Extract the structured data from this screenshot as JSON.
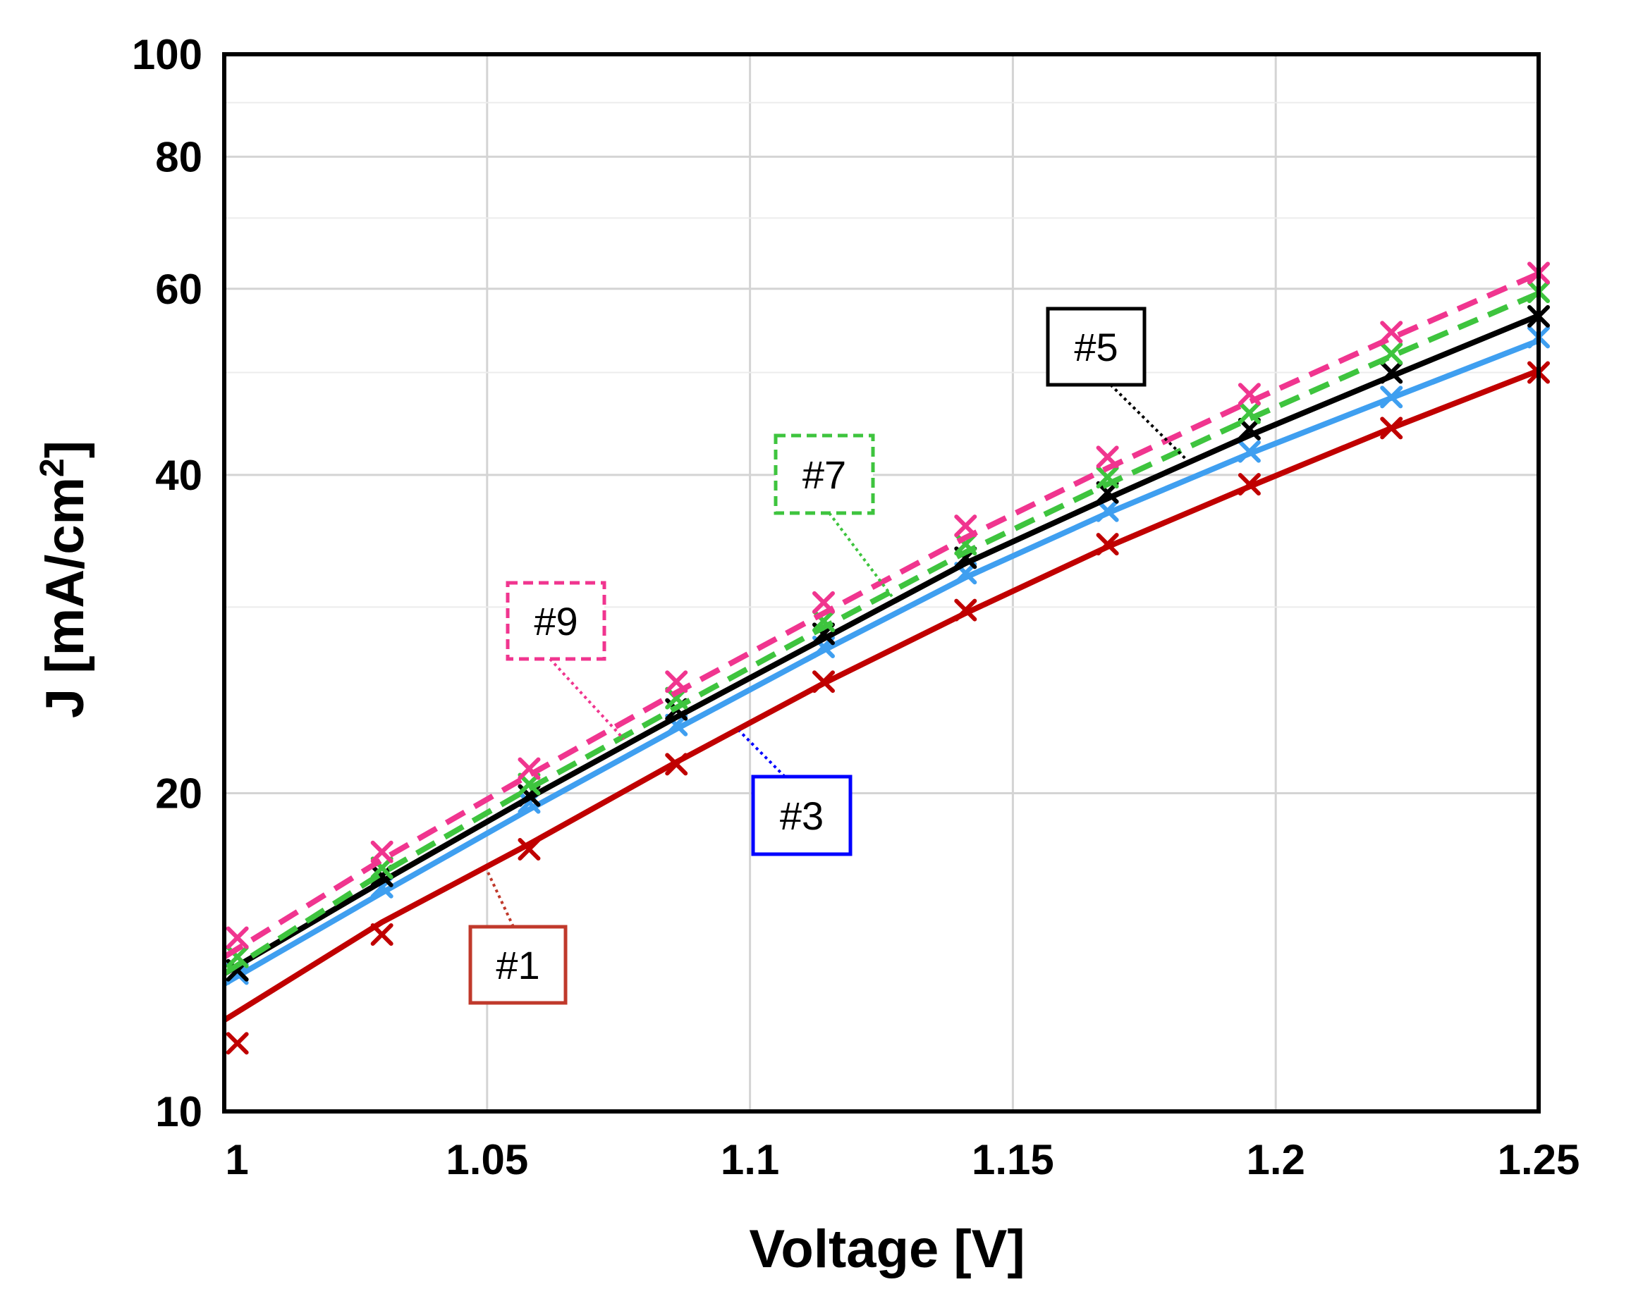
{
  "chart_data": {
    "type": "line",
    "title": "",
    "xlabel": "Voltage [V]",
    "ylabel_main": "J [mA/cm",
    "ylabel_sup": "2",
    "ylabel_close": "]",
    "xlim": [
      1.0,
      1.25
    ],
    "ylim": [
      10,
      100
    ],
    "yscale": "log",
    "grid": true,
    "x_ticks": [
      1.0,
      1.05,
      1.1,
      1.15,
      1.2,
      1.25
    ],
    "x_tick_labels": [
      "1",
      "1.05",
      "1.1",
      "1.15",
      "1.2",
      "1.25"
    ],
    "y_ticks": [
      10,
      20,
      40,
      60,
      80,
      100
    ],
    "y_tick_labels": [
      "10",
      "20",
      "40",
      "60",
      "80",
      "100"
    ],
    "y_grid_values": [
      30,
      50,
      70,
      90
    ],
    "series": [
      {
        "name": "#1",
        "color": "#c00000",
        "dash": "solid",
        "box_style": "solid",
        "box_color": "#c0392b",
        "points": [
          [
            1.0025,
            11.6
          ],
          [
            1.03,
            14.7
          ],
          [
            1.058,
            17.7
          ],
          [
            1.086,
            21.3
          ],
          [
            1.114,
            25.5
          ],
          [
            1.141,
            29.8
          ],
          [
            1.168,
            34.4
          ],
          [
            1.195,
            39.2
          ],
          [
            1.222,
            44.3
          ],
          [
            1.25,
            50.0
          ]
        ],
        "curve": [
          [
            1.0,
            12.2
          ],
          [
            1.03,
            15.1
          ],
          [
            1.058,
            17.9
          ],
          [
            1.086,
            21.4
          ],
          [
            1.114,
            25.4
          ],
          [
            1.141,
            29.6
          ],
          [
            1.168,
            34.2
          ],
          [
            1.195,
            39.0
          ],
          [
            1.222,
            44.3
          ],
          [
            1.25,
            50.2
          ]
        ]
      },
      {
        "name": "#3",
        "color": "#3f9ff0",
        "dash": "solid",
        "box_style": "solid",
        "box_color": "#0000ff",
        "points": [
          [
            1.0025,
            13.5
          ],
          [
            1.03,
            16.3
          ],
          [
            1.058,
            19.6
          ],
          [
            1.086,
            23.2
          ],
          [
            1.114,
            27.5
          ],
          [
            1.141,
            32.3
          ],
          [
            1.168,
            37.0
          ],
          [
            1.195,
            42.1
          ],
          [
            1.222,
            47.4
          ],
          [
            1.25,
            54.0
          ]
        ],
        "curve": [
          [
            1.0,
            13.2
          ],
          [
            1.03,
            16.1
          ],
          [
            1.058,
            19.3
          ],
          [
            1.086,
            23.0
          ],
          [
            1.114,
            27.3
          ],
          [
            1.141,
            32.0
          ],
          [
            1.168,
            36.8
          ],
          [
            1.195,
            41.9
          ],
          [
            1.222,
            47.3
          ],
          [
            1.25,
            53.6
          ]
        ]
      },
      {
        "name": "#5",
        "color": "#000000",
        "dash": "solid",
        "box_style": "solid",
        "box_color": "#000000",
        "points": [
          [
            1.0025,
            13.6
          ],
          [
            1.03,
            16.7
          ],
          [
            1.058,
            19.9
          ],
          [
            1.086,
            24.0
          ],
          [
            1.114,
            28.3
          ],
          [
            1.141,
            33.4
          ],
          [
            1.168,
            38.5
          ],
          [
            1.195,
            44.2
          ],
          [
            1.222,
            50.0
          ],
          [
            1.25,
            56.5
          ]
        ],
        "curve": [
          [
            1.0,
            13.5
          ],
          [
            1.03,
            16.5
          ],
          [
            1.058,
            19.8
          ],
          [
            1.086,
            23.6
          ],
          [
            1.114,
            28.0
          ],
          [
            1.141,
            33.0
          ],
          [
            1.168,
            38.0
          ],
          [
            1.195,
            43.6
          ],
          [
            1.222,
            49.6
          ],
          [
            1.25,
            56.6
          ]
        ]
      },
      {
        "name": "#7",
        "color": "#3ec43e",
        "dash": "dashed",
        "box_style": "dashed",
        "box_color": "#3ec43e",
        "points": [
          [
            1.0025,
            14.0
          ],
          [
            1.03,
            17.0
          ],
          [
            1.058,
            20.4
          ],
          [
            1.086,
            24.6
          ],
          [
            1.114,
            29.1
          ],
          [
            1.141,
            34.4
          ],
          [
            1.168,
            39.8
          ],
          [
            1.195,
            45.8
          ],
          [
            1.222,
            52.1
          ],
          [
            1.25,
            59.6
          ]
        ],
        "curve": [
          [
            1.0,
            13.5
          ],
          [
            1.03,
            16.8
          ],
          [
            1.058,
            20.2
          ],
          [
            1.086,
            24.1
          ],
          [
            1.114,
            28.7
          ],
          [
            1.141,
            33.8
          ],
          [
            1.168,
            39.2
          ],
          [
            1.195,
            45.2
          ],
          [
            1.222,
            51.8
          ],
          [
            1.25,
            59.4
          ]
        ]
      },
      {
        "name": "#9",
        "color": "#f0358f",
        "dash": "dashed",
        "box_style": "dashed",
        "box_color": "#f0358f",
        "points": [
          [
            1.0025,
            14.6
          ],
          [
            1.03,
            17.6
          ],
          [
            1.058,
            21.1
          ],
          [
            1.086,
            25.5
          ],
          [
            1.114,
            30.3
          ],
          [
            1.141,
            35.8
          ],
          [
            1.168,
            41.6
          ],
          [
            1.195,
            47.7
          ],
          [
            1.222,
            54.6
          ],
          [
            1.25,
            62.1
          ]
        ],
        "curve": [
          [
            1.0,
            14.0
          ],
          [
            1.03,
            17.3
          ],
          [
            1.058,
            20.8
          ],
          [
            1.086,
            24.9
          ],
          [
            1.114,
            29.6
          ],
          [
            1.141,
            34.9
          ],
          [
            1.168,
            40.6
          ],
          [
            1.195,
            46.9
          ],
          [
            1.222,
            53.9
          ],
          [
            1.25,
            62.0
          ]
        ]
      }
    ],
    "annotations": [
      {
        "label": "#1",
        "series": "#1",
        "box_style": "solid",
        "box_color": "#c0392b",
        "arrow_to": [
          1.05,
          16.9
        ]
      },
      {
        "label": "#3",
        "series": "#3",
        "box_style": "solid",
        "box_color": "#0000ff",
        "arrow_to": [
          1.098,
          22.9
        ]
      },
      {
        "label": "#5",
        "series": "#5",
        "box_style": "solid",
        "box_color": "#000000",
        "arrow_to": [
          1.184,
          40.9
        ]
      },
      {
        "label": "#7",
        "series": "#7",
        "box_style": "dashed",
        "box_color": "#3ec43e",
        "arrow_to": [
          1.127,
          30.7
        ]
      },
      {
        "label": "#9",
        "series": "#9",
        "box_style": "dashed",
        "box_color": "#f0358f",
        "arrow_to": [
          1.076,
          22.5
        ]
      }
    ]
  }
}
